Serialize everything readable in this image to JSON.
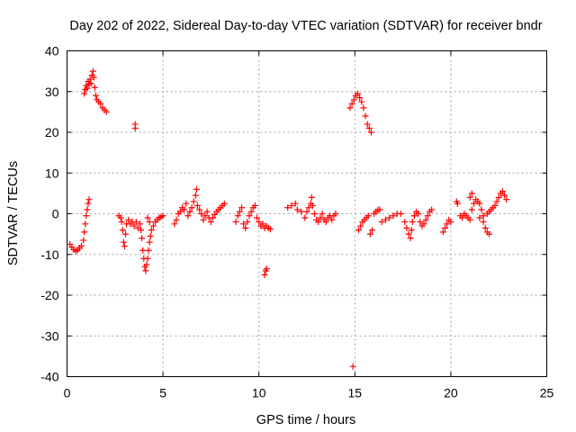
{
  "chart_data": {
    "type": "scatter",
    "title": "Day 202 of 2022, Sidereal Day-to-day VTEC variation (SDTVAR) for receiver bndr",
    "xlabel": "GPS time / hours",
    "ylabel": "SDTVAR / TECUs",
    "xlim": [
      0,
      25
    ],
    "ylim": [
      -40,
      40
    ],
    "x_ticks": [
      0,
      5,
      10,
      15,
      20,
      25
    ],
    "y_ticks": [
      -40,
      -30,
      -20,
      -10,
      0,
      10,
      20,
      30,
      40
    ],
    "grid": true,
    "marker": "+",
    "color": "#ff0000",
    "series": [
      {
        "points": [
          [
            0.15,
            -7.5
          ],
          [
            0.25,
            -8.2
          ],
          [
            0.35,
            -8.8
          ],
          [
            0.45,
            -9.2
          ],
          [
            0.55,
            -8.9
          ],
          [
            0.65,
            -8.4
          ],
          [
            0.75,
            -7.9
          ],
          [
            0.85,
            -6.5
          ],
          [
            0.9,
            -4.5
          ],
          [
            0.95,
            -2.5
          ],
          [
            1.0,
            -0.5
          ],
          [
            1.05,
            1.0
          ],
          [
            1.1,
            2.5
          ],
          [
            1.15,
            3.5
          ],
          [
            0.9,
            29.5
          ],
          [
            0.95,
            30.5
          ],
          [
            1.0,
            31.5
          ],
          [
            1.05,
            30.8
          ],
          [
            1.1,
            32.5
          ],
          [
            1.15,
            31.8
          ],
          [
            1.2,
            33.0
          ],
          [
            1.25,
            32.0
          ],
          [
            1.3,
            34.0
          ],
          [
            1.35,
            35.0
          ],
          [
            1.4,
            33.5
          ],
          [
            1.45,
            31.0
          ],
          [
            1.5,
            29.0
          ],
          [
            1.55,
            28.0
          ],
          [
            1.65,
            27.5
          ],
          [
            1.75,
            27.0
          ],
          [
            1.85,
            26.0
          ],
          [
            1.95,
            25.5
          ],
          [
            2.05,
            25.0
          ],
          [
            3.55,
            22.0
          ],
          [
            3.55,
            21.0
          ],
          [
            2.7,
            -0.5
          ],
          [
            2.8,
            -1.0
          ],
          [
            2.85,
            -2.0
          ],
          [
            2.9,
            -4.0
          ],
          [
            2.95,
            -7.0
          ],
          [
            3.0,
            -8.0
          ],
          [
            3.05,
            -5.0
          ],
          [
            3.1,
            -2.5
          ],
          [
            3.2,
            -1.5
          ],
          [
            3.3,
            -2.5
          ],
          [
            3.4,
            -2.0
          ],
          [
            3.5,
            -3.0
          ],
          [
            3.6,
            -2.0
          ],
          [
            3.7,
            -3.5
          ],
          [
            3.8,
            -2.5
          ],
          [
            3.85,
            -4.0
          ],
          [
            3.9,
            -6.0
          ],
          [
            3.95,
            -9.0
          ],
          [
            4.0,
            -11.0
          ],
          [
            4.05,
            -13.0
          ],
          [
            4.1,
            -14.0
          ],
          [
            4.15,
            -12.5
          ],
          [
            4.2,
            -11.0
          ],
          [
            4.25,
            -9.0
          ],
          [
            4.3,
            -7.0
          ],
          [
            4.35,
            -5.5
          ],
          [
            4.4,
            -4.0
          ],
          [
            4.5,
            -3.0
          ],
          [
            4.6,
            -2.0
          ],
          [
            4.7,
            -1.5
          ],
          [
            4.8,
            -1.0
          ],
          [
            4.9,
            -0.8
          ],
          [
            5.0,
            -0.5
          ],
          [
            4.2,
            -1.0
          ],
          [
            4.3,
            -2.0
          ],
          [
            5.6,
            -2.5
          ],
          [
            5.7,
            -1.5
          ],
          [
            5.8,
            0.0
          ],
          [
            5.9,
            0.5
          ],
          [
            6.0,
            1.5
          ],
          [
            6.1,
            1.0
          ],
          [
            6.2,
            2.5
          ],
          [
            6.3,
            -0.5
          ],
          [
            6.4,
            0.5
          ],
          [
            6.5,
            1.5
          ],
          [
            6.6,
            3.0
          ],
          [
            6.7,
            4.5
          ],
          [
            6.75,
            6.0
          ],
          [
            6.8,
            2.0
          ],
          [
            6.9,
            1.0
          ],
          [
            7.0,
            0.0
          ],
          [
            7.1,
            -1.5
          ],
          [
            7.2,
            -0.5
          ],
          [
            7.3,
            0.5
          ],
          [
            7.4,
            -1.0
          ],
          [
            7.5,
            -2.0
          ],
          [
            7.6,
            -1.0
          ],
          [
            7.7,
            -0.2
          ],
          [
            7.8,
            0.5
          ],
          [
            7.9,
            1.0
          ],
          [
            8.0,
            1.5
          ],
          [
            8.1,
            2.0
          ],
          [
            8.2,
            2.5
          ],
          [
            8.8,
            -2.0
          ],
          [
            8.9,
            -0.5
          ],
          [
            9.0,
            0.5
          ],
          [
            9.1,
            1.5
          ],
          [
            9.2,
            -2.5
          ],
          [
            9.3,
            -3.5
          ],
          [
            9.4,
            -2.0
          ],
          [
            9.5,
            -0.5
          ],
          [
            9.6,
            0.5
          ],
          [
            9.7,
            1.5
          ],
          [
            9.8,
            2.0
          ],
          [
            9.9,
            -1.0
          ],
          [
            10.0,
            -2.0
          ],
          [
            10.1,
            -3.0
          ],
          [
            10.2,
            -2.5
          ],
          [
            10.3,
            -3.5
          ],
          [
            10.4,
            -3.0
          ],
          [
            10.5,
            -3.5
          ],
          [
            10.6,
            -3.8
          ],
          [
            10.3,
            -15.0
          ],
          [
            10.35,
            -14.0
          ],
          [
            10.4,
            -13.5
          ],
          [
            11.5,
            1.5
          ],
          [
            11.7,
            2.0
          ],
          [
            11.9,
            2.5
          ],
          [
            12.0,
            1.0
          ],
          [
            12.2,
            0.5
          ],
          [
            12.4,
            -1.0
          ],
          [
            12.5,
            0.5
          ],
          [
            12.6,
            1.5
          ],
          [
            12.7,
            2.5
          ],
          [
            12.75,
            4.0
          ],
          [
            12.8,
            2.0
          ],
          [
            12.9,
            0.0
          ],
          [
            13.0,
            -1.5
          ],
          [
            13.1,
            -2.0
          ],
          [
            13.2,
            -1.0
          ],
          [
            13.3,
            0.0
          ],
          [
            13.4,
            -1.5
          ],
          [
            13.5,
            -2.0
          ],
          [
            13.6,
            -1.0
          ],
          [
            13.7,
            -0.5
          ],
          [
            13.8,
            -1.5
          ],
          [
            13.9,
            -0.5
          ],
          [
            14.0,
            0.0
          ],
          [
            14.9,
            -37.5
          ],
          [
            14.75,
            26.0
          ],
          [
            14.85,
            27.0
          ],
          [
            14.95,
            28.0
          ],
          [
            15.05,
            29.0
          ],
          [
            15.15,
            29.5
          ],
          [
            15.25,
            28.5
          ],
          [
            15.35,
            27.5
          ],
          [
            15.45,
            26.0
          ],
          [
            15.55,
            24.0
          ],
          [
            15.65,
            22.0
          ],
          [
            15.75,
            21.0
          ],
          [
            15.85,
            20.0
          ],
          [
            15.2,
            -4.0
          ],
          [
            15.3,
            -3.0
          ],
          [
            15.4,
            -2.0
          ],
          [
            15.5,
            -1.5
          ],
          [
            15.6,
            -1.0
          ],
          [
            15.7,
            -0.5
          ],
          [
            15.8,
            -5.0
          ],
          [
            15.9,
            -4.0
          ],
          [
            16.0,
            0.0
          ],
          [
            16.1,
            0.5
          ],
          [
            16.2,
            1.0
          ],
          [
            16.3,
            1.0
          ],
          [
            16.4,
            -2.0
          ],
          [
            16.6,
            -1.5
          ],
          [
            16.8,
            -1.0
          ],
          [
            17.0,
            -0.5
          ],
          [
            17.2,
            0.0
          ],
          [
            17.4,
            0.0
          ],
          [
            17.6,
            -2.0
          ],
          [
            17.7,
            -3.5
          ],
          [
            17.8,
            -5.0
          ],
          [
            17.9,
            -6.0
          ],
          [
            17.95,
            -4.0
          ],
          [
            18.0,
            -2.0
          ],
          [
            18.1,
            -0.5
          ],
          [
            18.2,
            0.5
          ],
          [
            18.3,
            0.0
          ],
          [
            18.4,
            -2.0
          ],
          [
            18.5,
            -3.0
          ],
          [
            18.6,
            -2.5
          ],
          [
            18.7,
            -1.5
          ],
          [
            18.8,
            -0.5
          ],
          [
            18.9,
            0.5
          ],
          [
            19.0,
            1.0
          ],
          [
            19.6,
            -4.5
          ],
          [
            19.7,
            -3.5
          ],
          [
            19.8,
            -2.5
          ],
          [
            19.9,
            -1.5
          ],
          [
            20.0,
            -2.0
          ],
          [
            20.3,
            3.0
          ],
          [
            20.35,
            2.5
          ],
          [
            20.5,
            -0.5
          ],
          [
            20.6,
            -1.0
          ],
          [
            20.7,
            0.0
          ],
          [
            20.8,
            -0.5
          ],
          [
            20.9,
            -1.0
          ],
          [
            21.0,
            -1.5
          ],
          [
            21.1,
            1.0
          ],
          [
            21.2,
            2.5
          ],
          [
            21.3,
            3.5
          ],
          [
            21.4,
            3.0
          ],
          [
            21.5,
            2.5
          ],
          [
            21.6,
            1.0
          ],
          [
            21.7,
            -2.0
          ],
          [
            21.8,
            -3.5
          ],
          [
            21.9,
            -4.5
          ],
          [
            22.0,
            -5.0
          ],
          [
            21.5,
            -1.0
          ],
          [
            21.7,
            -0.5
          ],
          [
            21.9,
            0.0
          ],
          [
            22.0,
            0.5
          ],
          [
            22.1,
            1.0
          ],
          [
            22.2,
            1.5
          ],
          [
            22.3,
            2.0
          ],
          [
            22.4,
            3.0
          ],
          [
            22.5,
            4.0
          ],
          [
            22.6,
            5.0
          ],
          [
            22.7,
            5.5
          ],
          [
            22.8,
            4.5
          ],
          [
            22.9,
            3.5
          ],
          [
            21.0,
            4.0
          ],
          [
            21.1,
            5.0
          ]
        ]
      }
    ]
  }
}
